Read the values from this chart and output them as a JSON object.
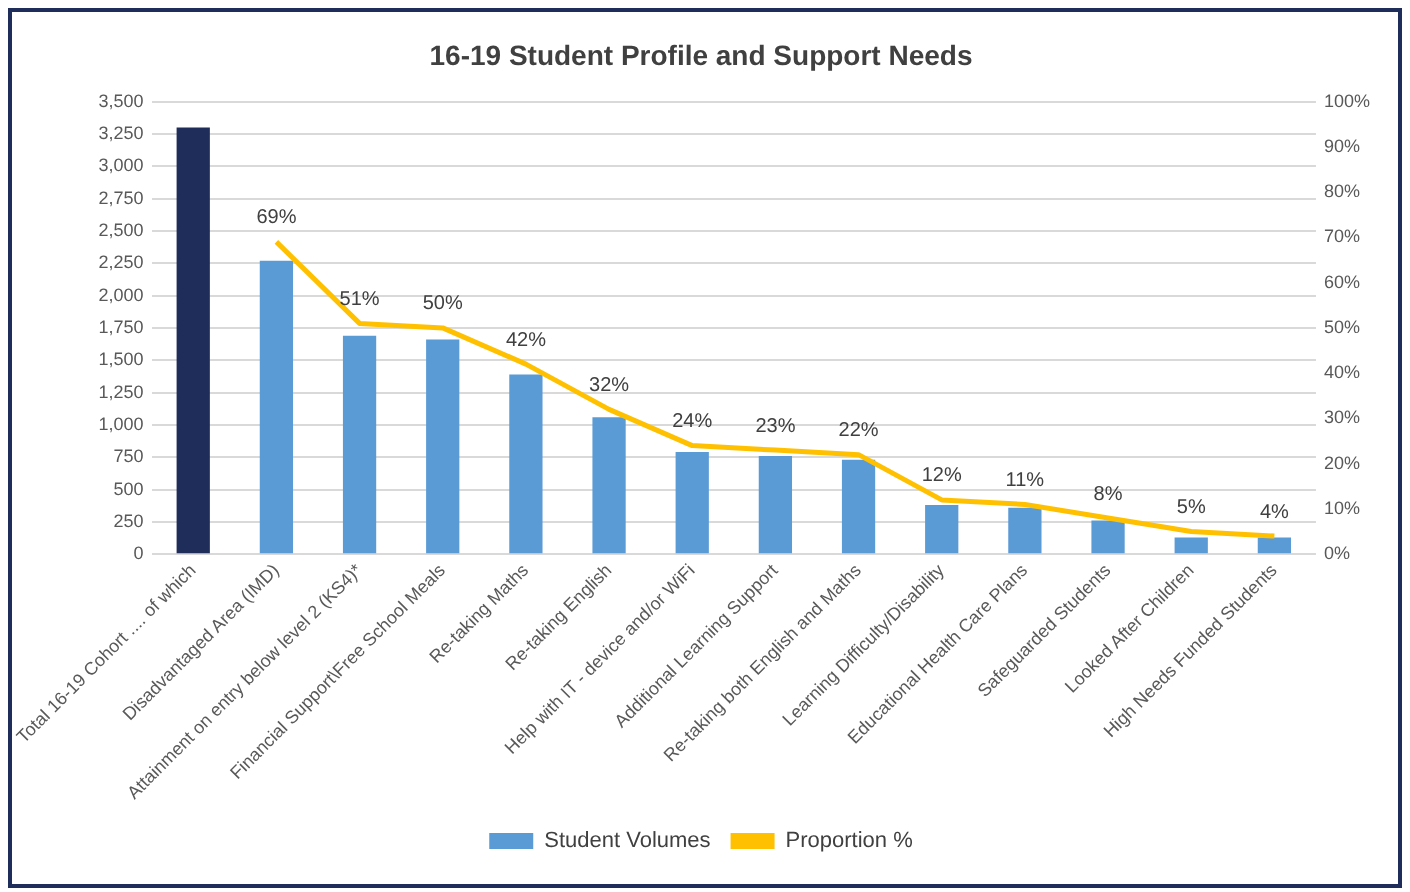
{
  "chart_data": {
    "type": "bar",
    "title": "16-19 Student Profile and Support Needs",
    "categories": [
      "Total 16-19 Cohort .... of which",
      "Disadvantaged Area (IMD)",
      "Attainment on entry below level 2 (KS4)*",
      "Financial Support\\Free School Meals",
      "Re-taking Maths",
      "Re-taking English",
      "Help with IT - device and/or WiFi",
      "Additional Learning Support",
      "Re-taking both English and Maths",
      "Learning Difficulty/Disability",
      "Educational Health Care Plans",
      "Safeguarded Students",
      "Looked After Children",
      "High Needs Funded Students"
    ],
    "series": [
      {
        "name": "Student Volumes",
        "color": "#5b9bd5",
        "colors": [
          "#1f2d5a",
          "#5b9bd5",
          "#5b9bd5",
          "#5b9bd5",
          "#5b9bd5",
          "#5b9bd5",
          "#5b9bd5",
          "#5b9bd5",
          "#5b9bd5",
          "#5b9bd5",
          "#5b9bd5",
          "#5b9bd5",
          "#5b9bd5",
          "#5b9bd5"
        ],
        "values": [
          3300,
          2270,
          1690,
          1660,
          1390,
          1060,
          790,
          760,
          730,
          380,
          360,
          260,
          130,
          130
        ]
      },
      {
        "name": "Proportion %",
        "type": "line",
        "axis": "y2",
        "color": "#ffc000",
        "values": [
          null,
          69,
          51,
          50,
          42,
          32,
          24,
          23,
          22,
          12,
          11,
          8,
          5,
          4
        ],
        "value_labels": [
          null,
          "69%",
          "51%",
          "50%",
          "42%",
          "32%",
          "24%",
          "23%",
          "22%",
          "12%",
          "11%",
          "8%",
          "5%",
          "4%"
        ]
      }
    ],
    "ylim": [
      0,
      3500
    ],
    "yticks": [
      {
        "value": 0,
        "label": "0"
      },
      {
        "value": 250,
        "label": "250"
      },
      {
        "value": 500,
        "label": "500"
      },
      {
        "value": 750,
        "label": "750"
      },
      {
        "value": 1000,
        "label": "1,000"
      },
      {
        "value": 1250,
        "label": "1,250"
      },
      {
        "value": 1500,
        "label": "1,500"
      },
      {
        "value": 1750,
        "label": "1,750"
      },
      {
        "value": 2000,
        "label": "2,000"
      },
      {
        "value": 2250,
        "label": "2,250"
      },
      {
        "value": 2500,
        "label": "2,500"
      },
      {
        "value": 2750,
        "label": "2,750"
      },
      {
        "value": 3000,
        "label": "3,000"
      },
      {
        "value": 3250,
        "label": "3,250"
      },
      {
        "value": 3500,
        "label": "3,500"
      }
    ],
    "y2lim": [
      0,
      100
    ],
    "y2ticks": [
      {
        "value": 0,
        "label": "0%"
      },
      {
        "value": 10,
        "label": "10%"
      },
      {
        "value": 20,
        "label": "20%"
      },
      {
        "value": 30,
        "label": "30%"
      },
      {
        "value": 40,
        "label": "40%"
      },
      {
        "value": 50,
        "label": "50%"
      },
      {
        "value": 60,
        "label": "60%"
      },
      {
        "value": 70,
        "label": "70%"
      },
      {
        "value": 80,
        "label": "80%"
      },
      {
        "value": 90,
        "label": "90%"
      },
      {
        "value": 100,
        "label": "100%"
      }
    ],
    "grid": "y",
    "legend": "bottom",
    "marker": "none",
    "line_style": "solid"
  }
}
